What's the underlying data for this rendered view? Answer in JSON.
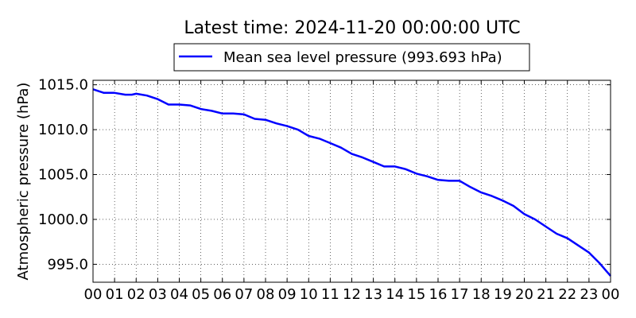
{
  "chart_data": {
    "type": "line",
    "title": "Latest time: 2024-11-20 00:00:00 UTC",
    "ylabel": "Atmospheric pressure (hPa)",
    "xlabel": "",
    "legend": {
      "placement": "top-center",
      "label": "Mean sea level pressure (993.693 hPa)"
    },
    "grid": true,
    "xlim": [
      0,
      24
    ],
    "ylim": [
      993.0,
      1015.5
    ],
    "x_ticks": [
      0,
      1,
      2,
      3,
      4,
      5,
      6,
      7,
      8,
      9,
      10,
      11,
      12,
      13,
      14,
      15,
      16,
      17,
      18,
      19,
      20,
      21,
      22,
      23,
      24
    ],
    "x_tick_labels": [
      "00",
      "01",
      "02",
      "03",
      "04",
      "05",
      "06",
      "07",
      "08",
      "09",
      "10",
      "11",
      "12",
      "13",
      "14",
      "15",
      "16",
      "17",
      "18",
      "19",
      "20",
      "21",
      "22",
      "23",
      "00"
    ],
    "y_ticks": [
      995.0,
      1000.0,
      1005.0,
      1010.0,
      1015.0
    ],
    "y_tick_labels": [
      "995.0",
      "1000.0",
      "1005.0",
      "1010.0",
      "1015.0"
    ],
    "series": [
      {
        "name": "Mean sea level pressure (993.693 hPa)",
        "color": "#0000ff",
        "x": [
          0,
          0.5,
          1,
          1.5,
          1.8,
          2,
          2.5,
          3,
          3.5,
          4,
          4.5,
          5,
          5.5,
          6,
          6.5,
          7,
          7.5,
          8,
          8.5,
          9,
          9.5,
          10,
          10.5,
          11,
          11.5,
          12,
          12.5,
          13,
          13.5,
          14,
          14.5,
          15,
          15.5,
          16,
          16.5,
          17,
          17.5,
          18,
          18.5,
          19,
          19.5,
          20,
          20.5,
          21,
          21.5,
          22,
          22.5,
          23,
          23.5,
          24
        ],
        "y": [
          1014.5,
          1014.1,
          1014.1,
          1013.9,
          1013.9,
          1014.0,
          1013.8,
          1013.4,
          1012.8,
          1012.8,
          1012.7,
          1012.3,
          1012.1,
          1011.8,
          1011.8,
          1011.7,
          1011.2,
          1011.1,
          1010.7,
          1010.4,
          1010.0,
          1009.3,
          1009.0,
          1008.5,
          1008.0,
          1007.3,
          1006.9,
          1006.4,
          1005.9,
          1005.9,
          1005.6,
          1005.1,
          1004.8,
          1004.4,
          1004.3,
          1004.3,
          1003.6,
          1003.0,
          1002.6,
          1002.1,
          1001.5,
          1000.6,
          1000.0,
          999.2,
          998.4,
          997.9,
          997.1,
          996.3,
          995.1,
          993.7
        ]
      }
    ]
  }
}
